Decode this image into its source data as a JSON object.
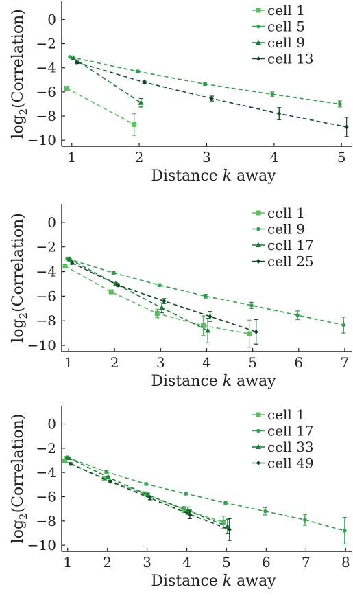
{
  "chart_data": [
    {
      "type": "line",
      "xlabel": "Distance k away",
      "ylabel": "log2(Correlation)",
      "xlim": [
        0.85,
        5.15
      ],
      "ylim": [
        -10.5,
        1.5
      ],
      "xticks": [
        "1",
        "2",
        "3",
        "4",
        "5"
      ],
      "yticks": [
        "0",
        "−2",
        "−4",
        "−6",
        "−8",
        "−10"
      ],
      "legend_position": "top-right",
      "series": [
        {
          "name": "cell 1",
          "color": "#5cbc62",
          "marker": "square",
          "points": [
            [
              1,
              -5.7,
              0.1
            ],
            [
              2,
              -8.7,
              0.9
            ]
          ]
        },
        {
          "name": "cell 5",
          "color": "#33a04b",
          "marker": "circle",
          "points": [
            [
              1,
              -3.1,
              0.05
            ],
            [
              2,
              -4.3,
              0.1
            ],
            [
              3,
              -5.35,
              0.1
            ],
            [
              4,
              -6.2,
              0.2
            ],
            [
              5,
              -7.0,
              0.25
            ]
          ]
        },
        {
          "name": "cell 9",
          "color": "#1c7a3a",
          "marker": "triangle",
          "points": [
            [
              1,
              -3.2,
              0.05
            ],
            [
              2,
              -6.9,
              0.35
            ]
          ]
        },
        {
          "name": "cell 13",
          "color": "#0e4a24",
          "marker": "diamond",
          "points": [
            [
              1,
              -3.55,
              0.1
            ],
            [
              2,
              -5.2,
              0.1
            ],
            [
              3,
              -6.55,
              0.2
            ],
            [
              4,
              -7.8,
              0.5
            ],
            [
              5,
              -8.9,
              0.8
            ]
          ]
        }
      ]
    },
    {
      "type": "line",
      "xlabel": "Distance k away",
      "ylabel": "log2(Correlation)",
      "xlim": [
        0.85,
        7.15
      ],
      "ylim": [
        -10.5,
        1.5
      ],
      "xticks": [
        "1",
        "2",
        "3",
        "4",
        "5",
        "6",
        "7"
      ],
      "yticks": [
        "0",
        "−2",
        "−4",
        "−6",
        "−8",
        "−10"
      ],
      "legend_position": "top-right",
      "series": [
        {
          "name": "cell 1",
          "color": "#5cbc62",
          "marker": "square",
          "points": [
            [
              1,
              -3.55,
              0.1
            ],
            [
              2,
              -5.65,
              0.15
            ],
            [
              3,
              -7.4,
              0.35
            ],
            [
              4,
              -8.4,
              0.8
            ],
            [
              5,
              -9.05,
              1.1
            ]
          ]
        },
        {
          "name": "cell 9",
          "color": "#33a04b",
          "marker": "circle",
          "points": [
            [
              1,
              -2.95,
              0.05
            ],
            [
              2,
              -4.1,
              0.1
            ],
            [
              3,
              -5.1,
              0.1
            ],
            [
              4,
              -6.0,
              0.15
            ],
            [
              5,
              -6.75,
              0.25
            ],
            [
              6,
              -7.55,
              0.35
            ],
            [
              7,
              -8.35,
              0.65
            ]
          ]
        },
        {
          "name": "cell 17",
          "color": "#1c7a3a",
          "marker": "triangle",
          "points": [
            [
              1,
              -3.0,
              0.05
            ],
            [
              2,
              -5.0,
              0.1
            ],
            [
              3,
              -6.95,
              0.4
            ],
            [
              4,
              -8.8,
              1.0
            ]
          ]
        },
        {
          "name": "cell 25",
          "color": "#0e4a24",
          "marker": "diamond",
          "points": [
            [
              1,
              -3.3,
              0.1
            ],
            [
              2,
              -5.1,
              0.1
            ],
            [
              3,
              -6.4,
              0.2
            ],
            [
              4,
              -7.65,
              0.4
            ],
            [
              5,
              -8.9,
              1.0
            ]
          ]
        }
      ]
    },
    {
      "type": "line",
      "xlabel": "Distance k away",
      "ylabel": "log2(Correlation)",
      "xlim": [
        0.85,
        8.15
      ],
      "ylim": [
        -10.5,
        1.5
      ],
      "xticks": [
        "1",
        "2",
        "3",
        "4",
        "5",
        "6",
        "7",
        "8"
      ],
      "yticks": [
        "0",
        "−2",
        "−4",
        "−6",
        "−8",
        "−10"
      ],
      "legend_position": "top-right",
      "series": [
        {
          "name": "cell 1",
          "color": "#5cbc62",
          "marker": "square",
          "points": [
            [
              1,
              -3.05,
              0.1
            ],
            [
              2,
              -4.5,
              0.1
            ],
            [
              3,
              -5.75,
              0.15
            ],
            [
              4,
              -7.05,
              0.25
            ],
            [
              5,
              -8.1,
              0.5
            ]
          ]
        },
        {
          "name": "cell 17",
          "color": "#33a04b",
          "marker": "circle",
          "points": [
            [
              1,
              -2.75,
              0.05
            ],
            [
              2,
              -3.95,
              0.1
            ],
            [
              3,
              -4.95,
              0.1
            ],
            [
              4,
              -5.75,
              0.1
            ],
            [
              5,
              -6.5,
              0.15
            ],
            [
              6,
              -7.2,
              0.3
            ],
            [
              7,
              -7.9,
              0.45
            ],
            [
              8,
              -8.8,
              1.1
            ]
          ]
        },
        {
          "name": "cell 33",
          "color": "#1c7a3a",
          "marker": "triangle",
          "points": [
            [
              1,
              -2.8,
              0.05
            ],
            [
              2,
              -4.4,
              0.1
            ],
            [
              3,
              -5.85,
              0.15
            ],
            [
              4,
              -7.15,
              0.3
            ],
            [
              5,
              -8.45,
              0.6
            ]
          ]
        },
        {
          "name": "cell 49",
          "color": "#0e4a24",
          "marker": "diamond",
          "points": [
            [
              1,
              -3.3,
              0.1
            ],
            [
              2,
              -4.75,
              0.1
            ],
            [
              3,
              -6.1,
              0.15
            ],
            [
              4,
              -7.45,
              0.35
            ],
            [
              5,
              -8.7,
              0.9
            ]
          ]
        }
      ]
    }
  ]
}
